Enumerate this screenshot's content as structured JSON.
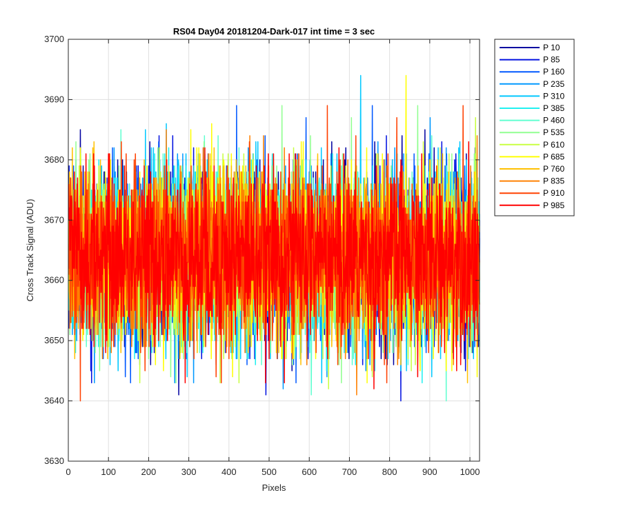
{
  "chart_data": {
    "type": "line",
    "title": "RS04 Day04 20181204-Dark-017 int time = 3 sec",
    "xlabel": "Pixels",
    "ylabel": "Cross Track Signal (ADU)",
    "xlim": [
      0,
      1024
    ],
    "ylim": [
      3630,
      3700
    ],
    "xticks": [
      0,
      100,
      200,
      300,
      400,
      500,
      600,
      700,
      800,
      900,
      1000
    ],
    "yticks": [
      3630,
      3640,
      3650,
      3660,
      3670,
      3680,
      3690,
      3700
    ],
    "grid": true,
    "legend_position": "outside-top-right",
    "n_points": 1024,
    "noise_mean": 3664,
    "noise_sd": 7,
    "series": [
      {
        "name": "P 10",
        "color": "#0000a0"
      },
      {
        "name": "P 85",
        "color": "#0010e0"
      },
      {
        "name": "P 160",
        "color": "#0058ff"
      },
      {
        "name": "P 235",
        "color": "#0098ff"
      },
      {
        "name": "P 310",
        "color": "#00c8ff"
      },
      {
        "name": "P 385",
        "color": "#20f0f0"
      },
      {
        "name": "P 460",
        "color": "#60ffd0"
      },
      {
        "name": "P 535",
        "color": "#90ff90"
      },
      {
        "name": "P 610",
        "color": "#c8ff40"
      },
      {
        "name": "P 685",
        "color": "#ffff00"
      },
      {
        "name": "P 760",
        "color": "#ffc000"
      },
      {
        "name": "P 835",
        "color": "#ff8000"
      },
      {
        "name": "P 910",
        "color": "#ff4000"
      },
      {
        "name": "P 985",
        "color": "#ff0000"
      }
    ]
  }
}
